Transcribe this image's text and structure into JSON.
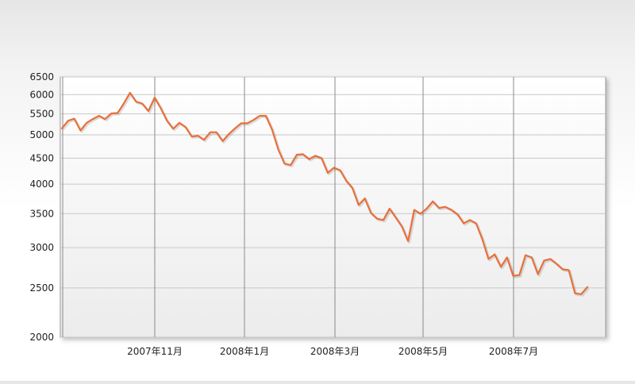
{
  "chart_data": {
    "type": "line",
    "title": "",
    "xlabel": "",
    "ylabel": "",
    "yscale": "log",
    "ylim": [
      2000,
      6500
    ],
    "y_ticks": [
      2000,
      2500,
      3000,
      3500,
      4000,
      4500,
      5000,
      5500,
      6000,
      6500
    ],
    "x_ticks": [
      "2007年11月",
      "2008年1月",
      "2008年3月",
      "2008年5月",
      "2008年7月"
    ],
    "grid": true,
    "line_color": "#e8703a",
    "series": [
      {
        "values": [
          5150,
          5330,
          5380,
          5100,
          5280,
          5370,
          5450,
          5370,
          5510,
          5520,
          5760,
          6050,
          5810,
          5760,
          5570,
          5920,
          5640,
          5330,
          5140,
          5280,
          5180,
          4960,
          4980,
          4890,
          5060,
          5060,
          4860,
          5020,
          5150,
          5270,
          5270,
          5350,
          5450,
          5450,
          5120,
          4680,
          4390,
          4360,
          4570,
          4580,
          4480,
          4550,
          4500,
          4210,
          4310,
          4260,
          4060,
          3930,
          3640,
          3750,
          3510,
          3420,
          3400,
          3580,
          3440,
          3300,
          3090,
          3560,
          3500,
          3580,
          3700,
          3590,
          3610,
          3560,
          3490,
          3350,
          3400,
          3350,
          3120,
          2850,
          2910,
          2750,
          2870,
          2640,
          2650,
          2900,
          2870,
          2660,
          2830,
          2850,
          2790,
          2720,
          2710,
          2440,
          2430,
          2510
        ]
      }
    ]
  }
}
